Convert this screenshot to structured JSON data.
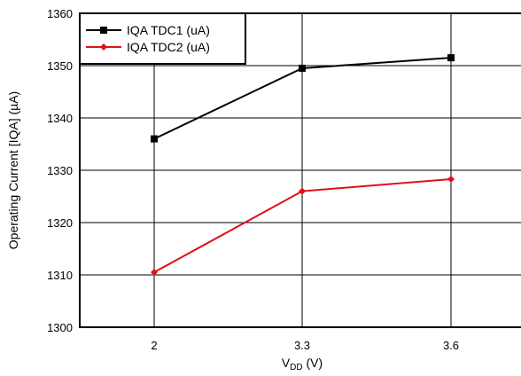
{
  "chart_data": {
    "type": "line",
    "x_categories": [
      "2",
      "3.3",
      "3.6"
    ],
    "xlabel": {
      "main": "V",
      "sub": "DD",
      "suffix": " (V)"
    },
    "ylabel": "Operating Current [IQA] (µA)",
    "ylim": [
      1300,
      1360
    ],
    "yticks": [
      "1300",
      "1310",
      "1320",
      "1330",
      "1340",
      "1350",
      "1360"
    ],
    "grid": true,
    "legend_position": "top-left",
    "series": [
      {
        "name": "IQA TDC1 (uA)",
        "color": "#000000",
        "marker": "square",
        "values": [
          1336,
          1349.5,
          1351.5
        ]
      },
      {
        "name": "IQA TDC2 (uA)",
        "color": "#e0101a",
        "marker": "diamond",
        "values": [
          1310.5,
          1326,
          1328.3
        ]
      }
    ]
  }
}
